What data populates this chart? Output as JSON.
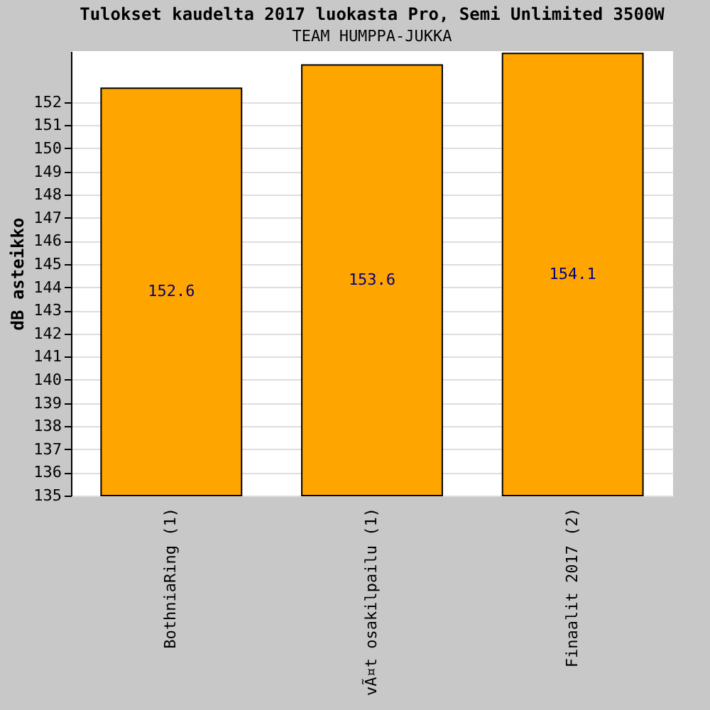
{
  "chart_data": {
    "type": "bar",
    "title": "Tulokset kaudelta 2017 luokasta Pro, Semi Unlimited 3500W",
    "subtitle": "TEAM HUMPPA-JUKKA",
    "ylabel": "dB asteikko",
    "categories": [
      "BothniaRing (1)",
      "vÃ¤t osakilpailu (1)",
      "Finaalit 2017 (2)"
    ],
    "values": [
      152.6,
      153.6,
      154.1
    ],
    "color": "#ffa500",
    "ylim": [
      135,
      154.2
    ],
    "yticks": [
      135,
      136,
      137,
      138,
      139,
      140,
      141,
      142,
      143,
      144,
      145,
      146,
      147,
      148,
      149,
      150,
      151,
      152
    ],
    "grid": "y",
    "data_labels": true
  }
}
